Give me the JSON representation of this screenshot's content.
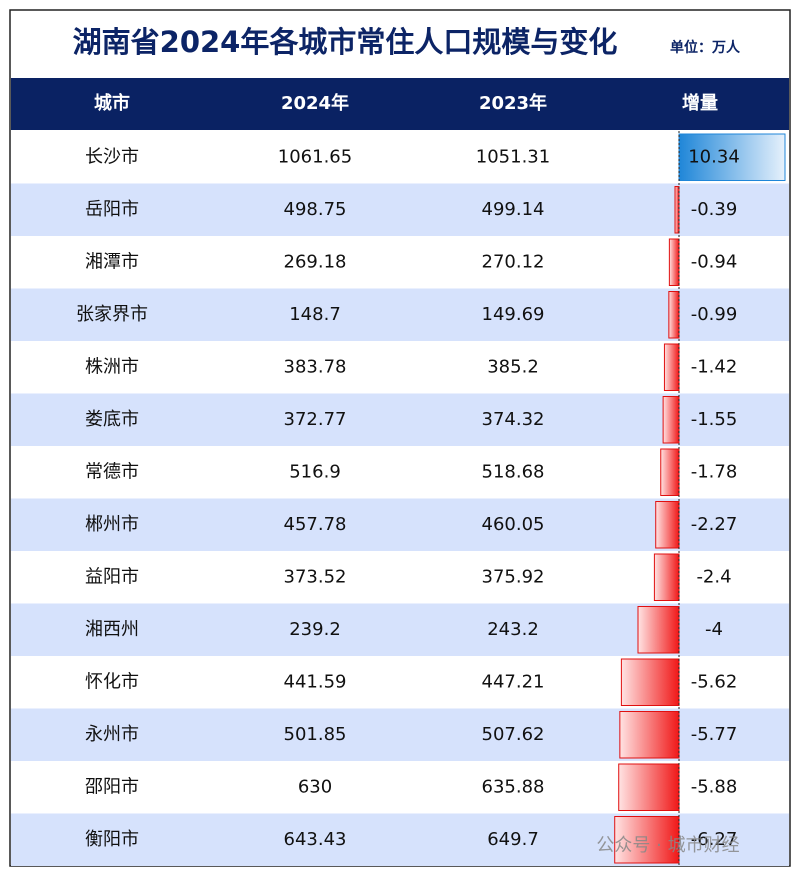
{
  "header": {
    "title": "湖南省2024年各城市常住人口规模与变化",
    "unit": "单位：万人"
  },
  "table": {
    "columns": [
      "城市",
      "2024年",
      "2023年",
      "增量"
    ],
    "rows": [
      [
        "长沙市",
        1061.65,
        1051.31,
        10.34
      ],
      [
        "岳阳市",
        498.75,
        499.14,
        -0.39
      ],
      [
        "湘潭市",
        269.18,
        270.12,
        -0.94
      ],
      [
        "张家界市",
        148.7,
        149.69,
        -0.99
      ],
      [
        "株洲市",
        383.78,
        385.2,
        -1.42
      ],
      [
        "娄底市",
        372.77,
        374.32,
        -1.55
      ],
      [
        "常德市",
        516.9,
        518.68,
        -1.78
      ],
      [
        "郴州市",
        457.78,
        460.05,
        -2.27
      ],
      [
        "益阳市",
        373.52,
        375.92,
        -2.4
      ],
      [
        "湘西州",
        239.2,
        243.2,
        -4
      ],
      [
        "怀化市",
        441.59,
        447.21,
        -5.62
      ],
      [
        "永州市",
        501.85,
        507.62,
        -5.77
      ],
      [
        "邵阳市",
        630,
        635.88,
        -5.88
      ],
      [
        "衡阳市",
        643.43,
        649.7,
        -6.27
      ]
    ]
  },
  "watermark": "公众号 · 城市财经"
}
